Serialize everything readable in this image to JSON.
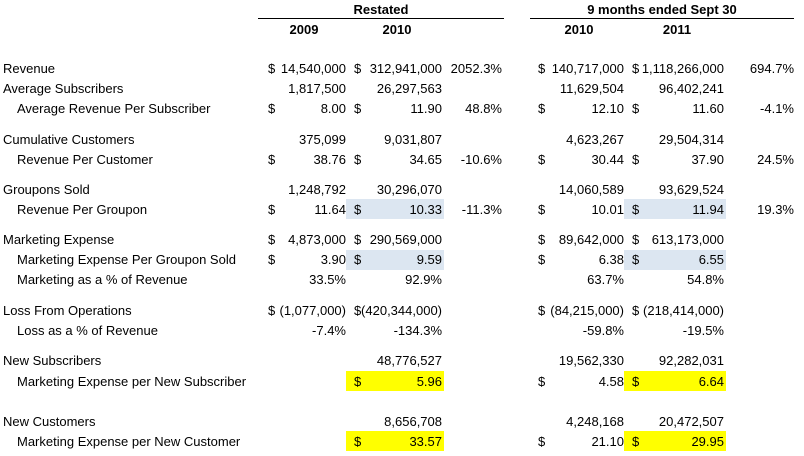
{
  "header": {
    "group1": "Restated",
    "group2": "9 months ended Sept 30",
    "y2009": "2009",
    "y2010a": "2010",
    "y2010b": "2010",
    "y2011": "2011"
  },
  "rows": [
    {
      "label": "Revenue",
      "indent": false,
      "a_d": "$",
      "a": "14,540,000",
      "b_d": "$",
      "b": "312,941,000",
      "p1": "2052.3%",
      "c_d": "$",
      "c": "140,717,000",
      "d_d": "$",
      "d": "1,118,266,000",
      "p2": "694.7%"
    },
    {
      "label": "Average Subscribers",
      "indent": false,
      "a": "1,817,500",
      "b": "26,297,563",
      "c": "11,629,504",
      "d": "96,402,241"
    },
    {
      "label": "Average Revenue Per Subscriber",
      "indent": true,
      "a_d": "$",
      "a": "8.00",
      "b_d": "$",
      "b": "11.90",
      "p1": "48.8%",
      "c_d": "$",
      "c": "12.10",
      "d_d": "$",
      "d": "11.60",
      "p2": "-4.1%"
    },
    {
      "label": "Cumulative Customers",
      "indent": false,
      "a": "375,099",
      "b": "9,031,807",
      "c": "4,623,267",
      "d": "29,504,314"
    },
    {
      "label": "Revenue Per Customer",
      "indent": true,
      "a_d": "$",
      "a": "38.76",
      "b_d": "$",
      "b": "34.65",
      "p1": "-10.6%",
      "c_d": "$",
      "c": "30.44",
      "d_d": "$",
      "d": "37.90",
      "p2": "24.5%"
    },
    {
      "label": "Groupons Sold",
      "indent": false,
      "a": "1,248,792",
      "b": "30,296,070",
      "c": "14,060,589",
      "d": "93,629,524"
    },
    {
      "label": "Revenue Per Groupon",
      "indent": true,
      "a_d": "$",
      "a": "11.64",
      "b_d": "$",
      "b": "10.33",
      "p1": "-11.3%",
      "c_d": "$",
      "c": "10.01",
      "d_d": "$",
      "d": "11.94",
      "p2": "19.3%"
    },
    {
      "label": "Marketing Expense",
      "indent": false,
      "a_d": "$",
      "a": "4,873,000",
      "b_d": "$",
      "b": "290,569,000",
      "c_d": "$",
      "c": "89,642,000",
      "d_d": "$",
      "d": "613,173,000"
    },
    {
      "label": "Marketing Expense Per Groupon Sold",
      "indent": true,
      "a_d": "$",
      "a": "3.90",
      "b_d": "$",
      "b": "9.59",
      "c_d": "$",
      "c": "6.38",
      "d_d": "$",
      "d": "6.55"
    },
    {
      "label": "Marketing as a % of Revenue",
      "indent": true,
      "a": "33.5%",
      "b": "92.9%",
      "c": "63.7%",
      "d": "54.8%"
    },
    {
      "label": "Loss From Operations",
      "indent": false,
      "a_d": "$",
      "a": "(1,077,000)",
      "b_d": "$",
      "b": "(420,344,000)",
      "c_d": "$",
      "c": "(84,215,000)",
      "d_d": "$",
      "d": "(218,414,000)"
    },
    {
      "label": "Loss as a % of Revenue",
      "indent": true,
      "a": "-7.4%",
      "b": "-134.3%",
      "c": "-59.8%",
      "d": "-19.5%"
    },
    {
      "label": "New Subscribers",
      "indent": false,
      "b": "48,776,527",
      "c": "19,562,330",
      "d": "92,282,031"
    },
    {
      "label": "Marketing Expense per New Subscriber",
      "indent": true,
      "b_d": "$",
      "b": "5.96",
      "c_d": "$",
      "c": "4.58",
      "d_d": "$",
      "d": "6.64"
    },
    {
      "label": "New Customers",
      "indent": false,
      "b": "8,656,708",
      "c": "4,248,168",
      "d": "20,472,507"
    },
    {
      "label": "Marketing Expense per New Customer",
      "indent": true,
      "b_d": "$",
      "b": "33.57",
      "c_d": "$",
      "c": "21.10",
      "d_d": "$",
      "d": "29.95"
    }
  ],
  "colors": {
    "blue_highlight": "#dce6f1",
    "yellow_highlight": "#ffff00"
  }
}
